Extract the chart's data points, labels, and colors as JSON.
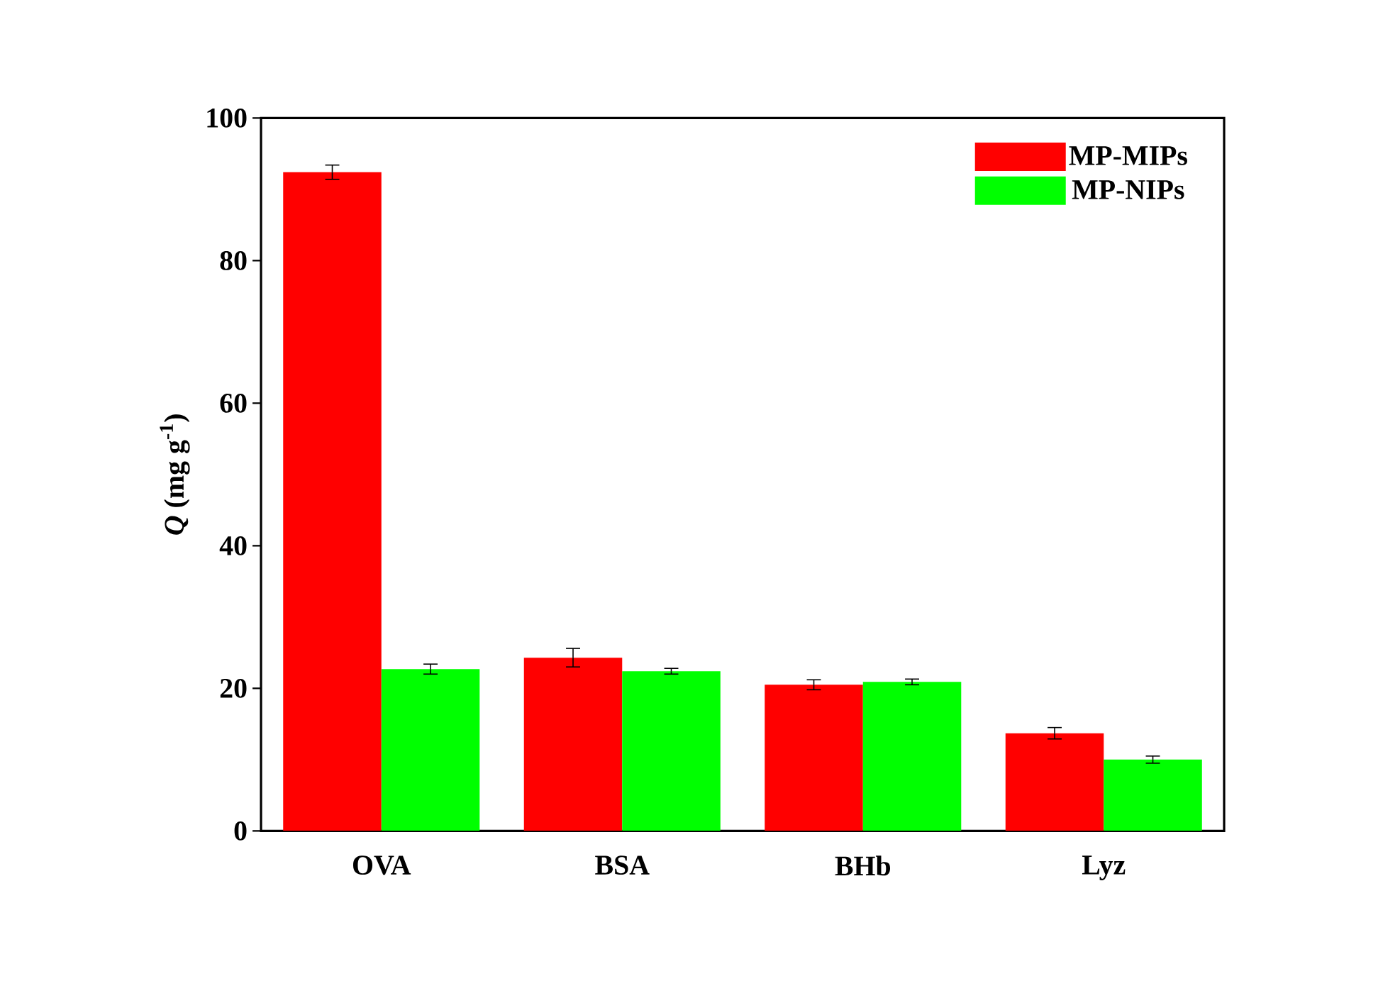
{
  "chart_data": {
    "type": "bar",
    "ylabel": "*Q* (mg g$^{-1}$)",
    "categories": [
      "OVA",
      "BSA",
      "BHb",
      "Lyz"
    ],
    "series": [
      {
        "name": "MP-MIPs",
        "color": "#ff0000",
        "values": [
          92.4,
          24.3,
          20.5,
          13.7
        ],
        "errors": [
          1.0,
          1.3,
          0.7,
          0.8
        ]
      },
      {
        "name": "MP-NIPs",
        "color": "#00ff00",
        "values": [
          22.7,
          22.4,
          20.9,
          10.0
        ],
        "errors": [
          0.7,
          0.4,
          0.4,
          0.5
        ]
      }
    ],
    "ylim": [
      0,
      100
    ],
    "yticks": [
      0,
      20,
      40,
      60,
      80,
      100
    ],
    "grid": false,
    "legend": "top right"
  }
}
